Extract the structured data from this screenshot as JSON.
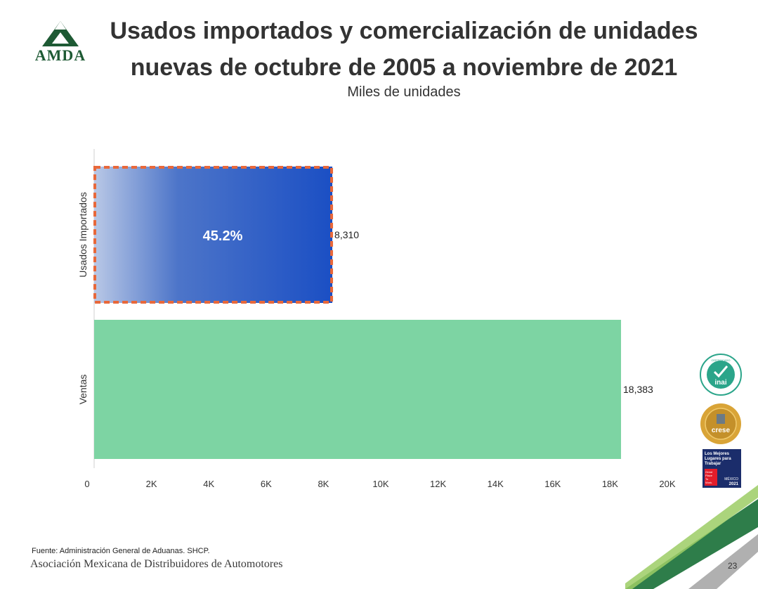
{
  "brand": {
    "logo_text": "AMDA"
  },
  "header": {
    "title_line1": "Usados importados y comercialización de unidades",
    "title_line2": "nuevas de octubre de 2005 a noviembre de 2021",
    "subtitle": "Miles de unidades"
  },
  "chart_data": {
    "type": "bar",
    "orientation": "horizontal",
    "title": "Usados importados y comercialización de unidades nuevas de octubre de 2005 a noviembre de 2021",
    "subtitle": "Miles de unidades",
    "categories": [
      "Usados Importados",
      "Ventas"
    ],
    "values": [
      8310,
      18383
    ],
    "value_labels": [
      "8,310",
      "18,383"
    ],
    "highlight_label": "45.2%",
    "colors": [
      "#1b4fc4",
      "#7dd4a3"
    ],
    "xlim": [
      0,
      20000
    ],
    "x_ticks": [
      0,
      2000,
      4000,
      6000,
      8000,
      10000,
      12000,
      14000,
      16000,
      18000,
      20000
    ],
    "x_tick_labels": [
      "0",
      "2K",
      "4K",
      "6K",
      "8K",
      "10K",
      "12K",
      "14K",
      "16K",
      "18K",
      "20K"
    ]
  },
  "badges": {
    "inai": {
      "text": "inai",
      "ring": "CERTIFICADO"
    },
    "crese": {
      "text": "crese"
    },
    "gptw": {
      "line1": "Los Mejores",
      "line2": "Lugares para",
      "line3": "Trabajar",
      "small1": "Great",
      "small2": "Place",
      "small3": "To",
      "small4": "Work.",
      "country": "MÉXICO",
      "year": "2021"
    }
  },
  "footer": {
    "source": "Fuente: Administración General de Aduanas. SHCP.",
    "organization": "Asociación Mexicana de Distribuidores de Automotores",
    "page_number": "23"
  }
}
